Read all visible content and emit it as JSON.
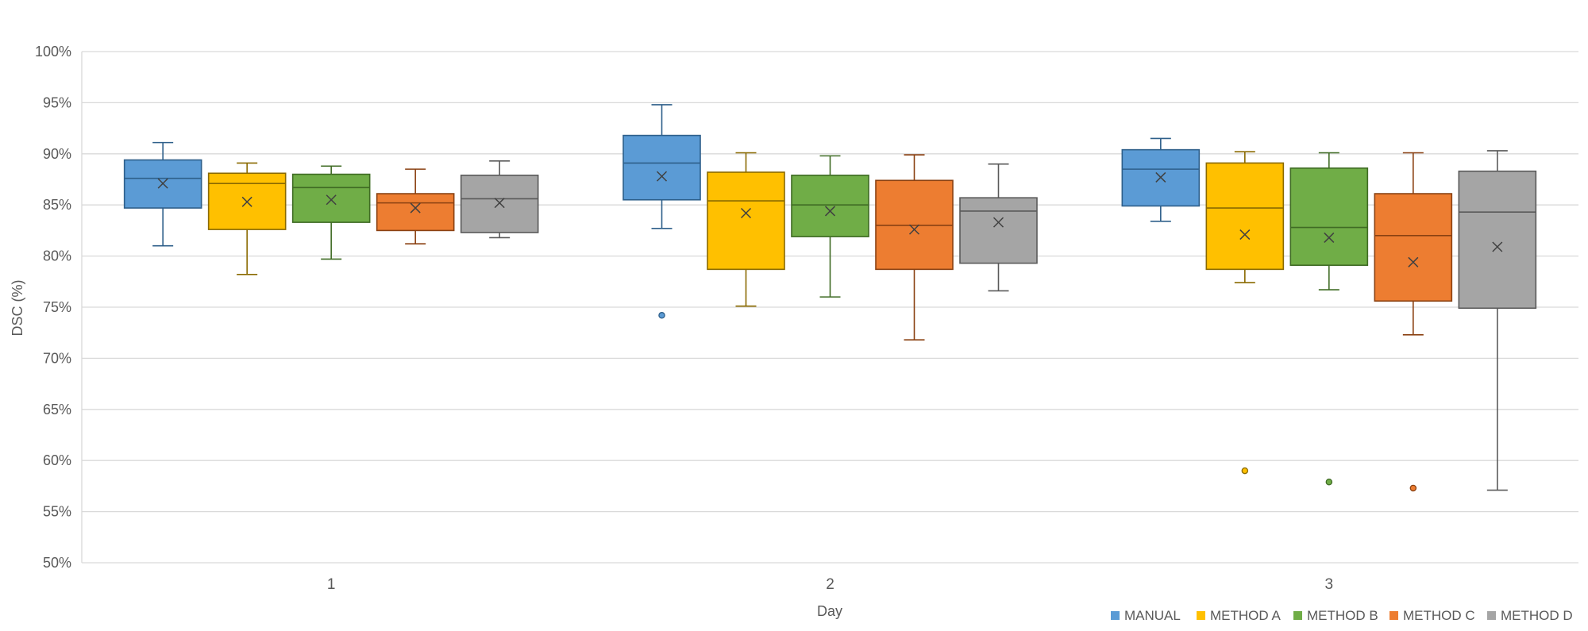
{
  "chart_data": {
    "type": "boxplot",
    "title": "",
    "xlabel": "Day",
    "ylabel": "DSC (%)",
    "ylim": [
      50,
      100
    ],
    "yticks": [
      50,
      55,
      60,
      65,
      70,
      75,
      80,
      85,
      90,
      95,
      100
    ],
    "ytick_suffix": "%",
    "grid": true,
    "legend_position": "bottom-right",
    "categories": [
      "1",
      "2",
      "3"
    ],
    "series": [
      {
        "name": "MANUAL",
        "color": "#5b9bd5",
        "stroke": "#2e5f8a",
        "boxes": [
          {
            "min": 81.0,
            "q1": 84.7,
            "median": 87.6,
            "q3": 89.4,
            "max": 91.1,
            "mean": 87.1,
            "outliers": []
          },
          {
            "min": 82.7,
            "q1": 85.5,
            "median": 89.1,
            "q3": 91.8,
            "max": 94.8,
            "mean": 87.8,
            "outliers": [
              74.2
            ]
          },
          {
            "min": 83.4,
            "q1": 84.9,
            "median": 88.5,
            "q3": 90.4,
            "max": 91.5,
            "mean": 87.7,
            "outliers": []
          }
        ]
      },
      {
        "name": "METHOD A",
        "color": "#ffc000",
        "stroke": "#8a6a00",
        "boxes": [
          {
            "min": 78.2,
            "q1": 82.6,
            "median": 87.1,
            "q3": 88.1,
            "max": 89.1,
            "mean": 85.3,
            "outliers": []
          },
          {
            "min": 75.1,
            "q1": 78.7,
            "median": 85.4,
            "q3": 88.2,
            "max": 90.1,
            "mean": 84.2,
            "outliers": []
          },
          {
            "min": 77.4,
            "q1": 78.7,
            "median": 84.7,
            "q3": 89.1,
            "max": 90.2,
            "mean": 82.1,
            "outliers": [
              59.0
            ]
          }
        ]
      },
      {
        "name": "METHOD B",
        "color": "#70ad47",
        "stroke": "#3f6b24",
        "boxes": [
          {
            "min": 79.7,
            "q1": 83.3,
            "median": 86.7,
            "q3": 88.0,
            "max": 88.8,
            "mean": 85.5,
            "outliers": []
          },
          {
            "min": 76.0,
            "q1": 81.9,
            "median": 85.0,
            "q3": 87.9,
            "max": 89.8,
            "mean": 84.4,
            "outliers": []
          },
          {
            "min": 76.7,
            "q1": 79.1,
            "median": 82.8,
            "q3": 88.6,
            "max": 90.1,
            "mean": 81.8,
            "outliers": [
              57.9
            ]
          }
        ]
      },
      {
        "name": "METHOD C",
        "color": "#ed7d31",
        "stroke": "#8a4112",
        "boxes": [
          {
            "min": 81.2,
            "q1": 82.5,
            "median": 85.2,
            "q3": 86.1,
            "max": 88.5,
            "mean": 84.7,
            "outliers": []
          },
          {
            "min": 71.8,
            "q1": 78.7,
            "median": 83.0,
            "q3": 87.4,
            "max": 89.9,
            "mean": 82.6,
            "outliers": []
          },
          {
            "min": 72.3,
            "q1": 75.6,
            "median": 82.0,
            "q3": 86.1,
            "max": 90.1,
            "mean": 79.4,
            "outliers": [
              57.3
            ]
          }
        ]
      },
      {
        "name": "METHOD D",
        "color": "#a5a5a5",
        "stroke": "#5a5a5a",
        "boxes": [
          {
            "min": 81.8,
            "q1": 82.3,
            "median": 85.6,
            "q3": 87.9,
            "max": 89.3,
            "mean": 85.2,
            "outliers": []
          },
          {
            "min": 76.6,
            "q1": 79.3,
            "median": 84.4,
            "q3": 85.7,
            "max": 89.0,
            "mean": 83.3,
            "outliers": []
          },
          {
            "min": 57.1,
            "q1": 74.9,
            "median": 84.3,
            "q3": 88.3,
            "max": 90.3,
            "mean": 80.9,
            "outliers": []
          }
        ]
      }
    ]
  }
}
